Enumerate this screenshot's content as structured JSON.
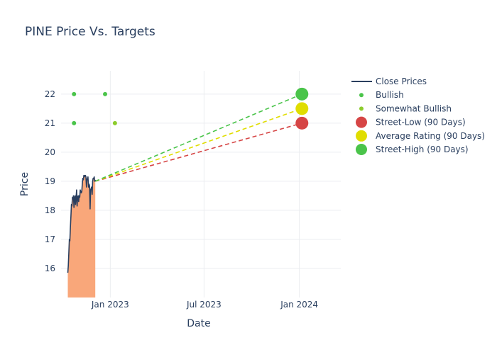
{
  "chart_data": {
    "type": "line",
    "title": "PINE Price Vs. Targets",
    "xlabel": "Date",
    "ylabel": "Price",
    "x_range_days": [
      -95,
      445
    ],
    "y_range": [
      15.0,
      22.8
    ],
    "x_ticks": [
      {
        "label": "Jan 2023",
        "day": 0
      },
      {
        "label": "Jul 2023",
        "day": 181
      },
      {
        "label": "Jan 2024",
        "day": 365
      }
    ],
    "y_ticks": [
      16,
      17,
      18,
      19,
      20,
      21,
      22
    ],
    "colors": {
      "close": "#2a3f5f",
      "area": "#f9a77a",
      "bullish": "#4ac44a",
      "somewhat_bullish": "#8ccc2c",
      "street_low": "#d64545",
      "average": "#e0dd00",
      "street_high": "#4ac44a",
      "grid": "#ebedf0",
      "text": "#2a3f5f"
    },
    "close_prices": [
      [
        -82,
        15.85
      ],
      [
        -81,
        16.1
      ],
      [
        -80,
        16.5
      ],
      [
        -79,
        17.0
      ],
      [
        -78,
        16.95
      ],
      [
        -77,
        17.4
      ],
      [
        -76,
        17.8
      ],
      [
        -75,
        18.2
      ],
      [
        -74,
        18.15
      ],
      [
        -73,
        18.45
      ],
      [
        -72,
        18.4
      ],
      [
        -71,
        18.5
      ],
      [
        -70,
        18.1
      ],
      [
        -69,
        18.45
      ],
      [
        -68,
        18.5
      ],
      [
        -67,
        18.2
      ],
      [
        -66,
        18.45
      ],
      [
        -65,
        18.7
      ],
      [
        -64,
        18.15
      ],
      [
        -63,
        18.45
      ],
      [
        -62,
        18.5
      ],
      [
        -61,
        18.3
      ],
      [
        -60,
        18.5
      ],
      [
        -59,
        18.45
      ],
      [
        -58,
        18.7
      ],
      [
        -57,
        18.65
      ],
      [
        -56,
        18.6
      ],
      [
        -55,
        18.65
      ],
      [
        -54,
        18.9
      ],
      [
        -53,
        19.1
      ],
      [
        -52,
        19.05
      ],
      [
        -51,
        19.2
      ],
      [
        -50,
        19.15
      ],
      [
        -49,
        19.2
      ],
      [
        -48,
        19.2
      ],
      [
        -47,
        19.15
      ],
      [
        -46,
        18.8
      ],
      [
        -45,
        19.05
      ],
      [
        -44,
        19.1
      ],
      [
        -43,
        19.15
      ],
      [
        -42,
        18.8
      ],
      [
        -41,
        18.9
      ],
      [
        -40,
        18.85
      ],
      [
        -39,
        18.05
      ],
      [
        -38,
        18.7
      ],
      [
        -37,
        18.75
      ],
      [
        -36,
        18.8
      ],
      [
        -35,
        18.55
      ],
      [
        -34,
        19.0
      ],
      [
        -33,
        19.1
      ],
      [
        -32,
        19.1
      ],
      [
        -31,
        19.15
      ],
      [
        -30,
        19.0
      ],
      [
        -29,
        19.05
      ]
    ],
    "series": [
      {
        "name": "Close Prices",
        "kind": "line"
      },
      {
        "name": "Bullish",
        "kind": "dot",
        "points": [
          [
            -70,
            22
          ],
          [
            -70,
            21
          ],
          [
            -10,
            22
          ]
        ]
      },
      {
        "name": "Somewhat Bullish",
        "kind": "dot",
        "points": [
          [
            9,
            21
          ]
        ]
      },
      {
        "name": "Street-Low (90 Days)",
        "kind": "target",
        "start": [
          -29,
          19.0
        ],
        "end": [
          370,
          21.0
        ]
      },
      {
        "name": "Average Rating (90 Days)",
        "kind": "target",
        "start": [
          -29,
          19.0
        ],
        "end": [
          370,
          21.5
        ]
      },
      {
        "name": "Street-High (90 Days)",
        "kind": "target",
        "start": [
          -29,
          19.0
        ],
        "end": [
          370,
          22.0
        ]
      }
    ]
  }
}
